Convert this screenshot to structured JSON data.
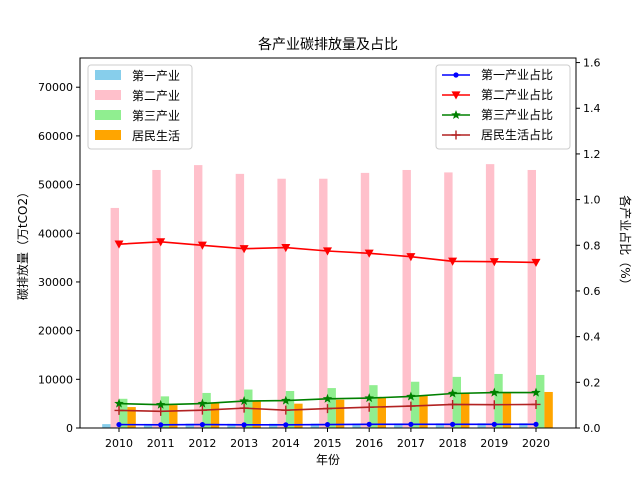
{
  "chart_data": {
    "type": "bar",
    "title": "各产业碳排放量及占比",
    "xlabel": "年份",
    "ylabel": "碳排放量（万tCO2）",
    "y2label": "各产业占比（%）",
    "categories": [
      "2010",
      "2011",
      "2012",
      "2013",
      "2014",
      "2015",
      "2016",
      "2017",
      "2018",
      "2019",
      "2020"
    ],
    "ylim": [
      0,
      76000
    ],
    "yticks": [
      0,
      10000,
      20000,
      30000,
      40000,
      50000,
      60000,
      70000
    ],
    "y2lim": [
      0,
      1.62
    ],
    "y2ticks": [
      0.0,
      0.2,
      0.4,
      0.6,
      0.8,
      1.0,
      1.2,
      1.4,
      1.6
    ],
    "bar_series": [
      {
        "name": "第一产业",
        "color": "#87ceeb",
        "values": [
          800,
          850,
          900,
          870,
          880,
          900,
          930,
          950,
          960,
          970,
          980
        ]
      },
      {
        "name": "第二产业",
        "color": "#ffc0cb",
        "values": [
          45200,
          53000,
          54000,
          52200,
          51200,
          51200,
          52400,
          53000,
          52500,
          54200,
          53000
        ]
      },
      {
        "name": "第三产业",
        "color": "#90ee90",
        "values": [
          6000,
          6500,
          7200,
          7900,
          7600,
          8200,
          8800,
          9500,
          10500,
          11100,
          10900
        ]
      },
      {
        "name": "居民生活",
        "color": "#ffa500",
        "values": [
          4300,
          4700,
          5100,
          5500,
          5000,
          5800,
          6200,
          6600,
          7100,
          7400,
          7400
        ]
      }
    ],
    "line_series": [
      {
        "name": "第一产业占比",
        "color": "#0000ff",
        "marker": "dot",
        "values": [
          0.015,
          0.014,
          0.015,
          0.014,
          0.014,
          0.015,
          0.016,
          0.016,
          0.016,
          0.016,
          0.016
        ]
      },
      {
        "name": "第二产业占比",
        "color": "#ff0000",
        "marker": "triangle-down",
        "values": [
          0.805,
          0.815,
          0.8,
          0.785,
          0.79,
          0.775,
          0.765,
          0.75,
          0.73,
          0.728,
          0.725
        ]
      },
      {
        "name": "第三产业占比",
        "color": "#008000",
        "marker": "star",
        "values": [
          0.107,
          0.102,
          0.107,
          0.118,
          0.12,
          0.128,
          0.131,
          0.138,
          0.151,
          0.155,
          0.155
        ]
      },
      {
        "name": "居民生活占比",
        "color": "#b22222",
        "marker": "plus",
        "values": [
          0.077,
          0.073,
          0.078,
          0.087,
          0.078,
          0.085,
          0.091,
          0.096,
          0.103,
          0.102,
          0.103
        ]
      }
    ],
    "legend_bars_position": "upper-left",
    "legend_lines_position": "upper-right",
    "grid": false
  }
}
